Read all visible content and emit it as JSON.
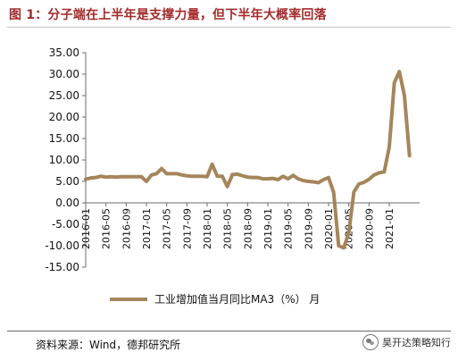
{
  "title": "图 1：分子端在上半年是支撑力量，但下半年大概率回落",
  "source": "资料来源：Wind，德邦研究所",
  "watermark": "昊开达策略知行",
  "colors": {
    "title": "#A52A2A",
    "line": "#A5855A"
  },
  "chart_data": {
    "type": "line",
    "title": "",
    "xlabel": "",
    "ylabel": "",
    "ylim": [
      -15,
      35
    ],
    "yticks": [
      "35.00",
      "30.00",
      "25.00",
      "20.00",
      "15.00",
      "10.00",
      "5.00",
      "0.00",
      "-5.00",
      "-10.00",
      "-15.00"
    ],
    "xticks": [
      "2016-01",
      "2016-05",
      "2016-09",
      "2017-01",
      "2017-05",
      "2017-09",
      "2018-01",
      "2018-05",
      "2018-09",
      "2019-01",
      "2019-05",
      "2019-09",
      "2020-01",
      "2020-05",
      "2020-09",
      "2021-01"
    ],
    "grid": false,
    "legend": "bottom",
    "series": [
      {
        "name": "工业增加值当月同比MA3（%） 月",
        "x": [
          "2016-01",
          "2016-02",
          "2016-03",
          "2016-04",
          "2016-05",
          "2016-06",
          "2016-07",
          "2016-08",
          "2016-09",
          "2016-10",
          "2016-11",
          "2016-12",
          "2017-01",
          "2017-02",
          "2017-03",
          "2017-04",
          "2017-05",
          "2017-06",
          "2017-07",
          "2017-08",
          "2017-09",
          "2017-10",
          "2017-11",
          "2017-12",
          "2018-01",
          "2018-02",
          "2018-03",
          "2018-04",
          "2018-05",
          "2018-06",
          "2018-07",
          "2018-08",
          "2018-09",
          "2018-10",
          "2018-11",
          "2018-12",
          "2019-01",
          "2019-02",
          "2019-03",
          "2019-04",
          "2019-05",
          "2019-06",
          "2019-07",
          "2019-08",
          "2019-09",
          "2019-10",
          "2019-11",
          "2019-12",
          "2020-01",
          "2020-02",
          "2020-03",
          "2020-04",
          "2020-05",
          "2020-06",
          "2020-07",
          "2020-08",
          "2020-09",
          "2020-10",
          "2020-11",
          "2020-12",
          "2021-01",
          "2021-02",
          "2021-03",
          "2021-04",
          "2021-05"
        ],
        "values": [
          5.5,
          5.8,
          5.9,
          6.2,
          6.0,
          6.1,
          6.0,
          6.1,
          6.1,
          6.1,
          6.1,
          6.1,
          5.0,
          6.5,
          6.8,
          8.0,
          6.8,
          6.8,
          6.8,
          6.5,
          6.3,
          6.2,
          6.2,
          6.2,
          6.1,
          9.0,
          6.2,
          6.2,
          3.8,
          6.6,
          6.7,
          6.3,
          6.0,
          5.9,
          5.9,
          5.6,
          5.6,
          5.7,
          5.4,
          6.2,
          5.6,
          6.4,
          5.6,
          5.2,
          5.0,
          4.9,
          4.7,
          5.4,
          5.9,
          2.5,
          -10.0,
          -10.5,
          -7.0,
          2.5,
          4.4,
          4.8,
          5.5,
          6.5,
          7.0,
          7.2,
          13.0,
          28.0,
          30.6,
          25.0,
          11.0
        ]
      }
    ]
  }
}
